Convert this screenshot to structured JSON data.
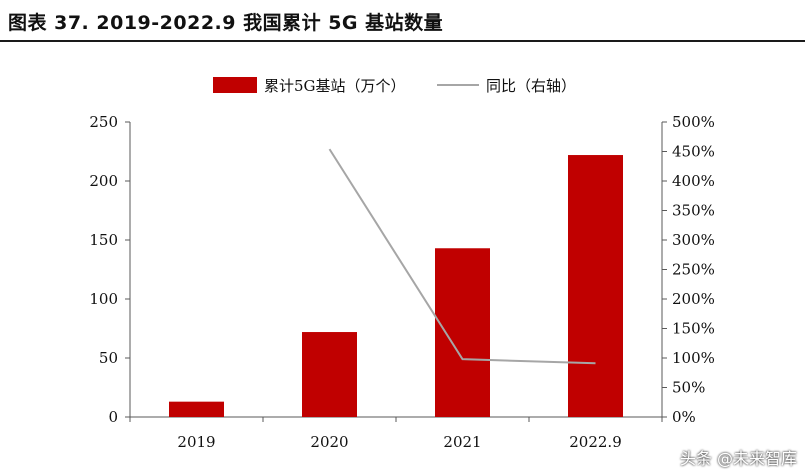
{
  "title": "图表 37. 2019-2022.9 我国累计 5G 基站数量",
  "watermark": "头条 @未来智库",
  "colors": {
    "bar": "#c00000",
    "line": "#a6a6a6",
    "axis": "#595959",
    "text": "#111111"
  },
  "chart_data": {
    "type": "bar",
    "categories": [
      "2019",
      "2020",
      "2021",
      "2022.9"
    ],
    "series": [
      {
        "name": "累计5G基站（万个）",
        "type": "bar",
        "axis": "left",
        "values": [
          13,
          72,
          143,
          222
        ]
      },
      {
        "name": "同比（右轴）",
        "type": "line",
        "axis": "right",
        "values": [
          null,
          454,
          98,
          91
        ]
      }
    ],
    "ylim_left": [
      0,
      250
    ],
    "yticks_left": [
      "0",
      "50",
      "100",
      "150",
      "200",
      "250"
    ],
    "ylim_right": [
      0,
      500
    ],
    "yticks_right": [
      "0%",
      "50%",
      "100%",
      "150%",
      "200%",
      "250%",
      "300%",
      "350%",
      "400%",
      "450%",
      "500%"
    ],
    "legend": "top-center",
    "grid": false
  }
}
